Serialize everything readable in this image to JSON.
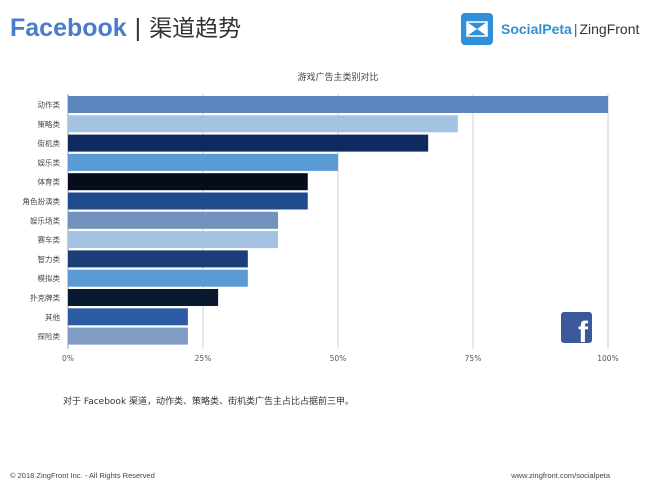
{
  "header": {
    "brand": "Facebook",
    "separator": "|",
    "section": "渠道趋势"
  },
  "logo": {
    "icon": "socialpeta-logo-icon",
    "name": "SocialPeta",
    "separator": "|",
    "company": "ZingFront",
    "color": "#2f8fd8"
  },
  "chart_data": {
    "type": "bar",
    "orientation": "horizontal",
    "title": "游戏广告主类别对比",
    "xlabel": "",
    "ylabel": "",
    "xlim": [
      0,
      100
    ],
    "grid": true,
    "x_ticks": [
      "0%",
      "25%",
      "50%",
      "75%",
      "100%"
    ],
    "categories": [
      "动作类",
      "策略类",
      "街机类",
      "娱乐类",
      "体育类",
      "角色扮演类",
      "娱乐场类",
      "赛车类",
      "智力类",
      "模拟类",
      "扑克牌类",
      "其他",
      "探险类"
    ],
    "values": [
      100,
      72.2,
      66.7,
      50,
      44.4,
      44.4,
      38.9,
      38.9,
      33.3,
      33.3,
      27.8,
      22.2,
      22.2
    ],
    "colors": [
      "#5b86be",
      "#a4c2e1",
      "#0e2a5e",
      "#5b9bd5",
      "#050d1c",
      "#1f4a8b",
      "#7292bd",
      "#a4c2e1",
      "#1a3f78",
      "#5b9bd5",
      "#091a30",
      "#2b5ca4",
      "#7f9dc6"
    ]
  },
  "facebook_icon": "facebook-logo-icon",
  "caption": "对于  Facebook 渠道，动作类、策略类、街机类广告主占比占据前三甲。",
  "footer": {
    "copyright": "© 2018 ZingFront Inc. - All Rights Reserved",
    "url": "www.zingfront.com/socialpeta"
  }
}
